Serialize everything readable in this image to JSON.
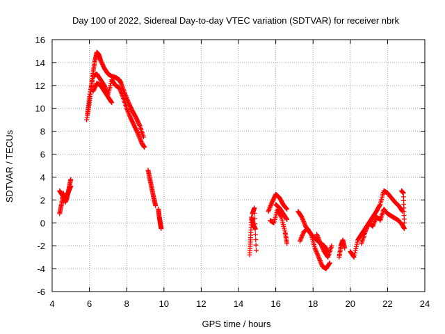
{
  "chart_data": {
    "type": "scatter",
    "title": "Day 100 of 2022, Sidereal Day-to-day VTEC variation (SDTVAR) for receiver nbrk",
    "xlabel": "GPS time / hours",
    "ylabel": "SDTVAR / TECUs",
    "xlim": [
      4,
      24
    ],
    "ylim": [
      -6,
      16
    ],
    "xticks": [
      4,
      6,
      8,
      10,
      12,
      14,
      16,
      18,
      20,
      22,
      24
    ],
    "yticks": [
      -6,
      -4,
      -2,
      0,
      2,
      4,
      6,
      8,
      10,
      12,
      14,
      16
    ],
    "grid": true,
    "marker": "+",
    "marker_color": "#ff0000",
    "series": [
      {
        "name": "SDTVAR",
        "segments": [
          {
            "x": [
              4.4,
              4.5,
              4.6,
              4.7,
              4.8,
              4.9,
              5.0
            ],
            "y": [
              0.8,
              1.6,
              2.6,
              1.8,
              2.2,
              3.0,
              3.8
            ]
          },
          {
            "x": [
              4.4,
              4.55,
              4.7,
              4.85,
              5.0
            ],
            "y": [
              2.8,
              2.4,
              2.0,
              2.6,
              3.2
            ]
          },
          {
            "x": [
              5.85,
              6.0,
              6.1,
              6.2,
              6.3,
              6.4,
              6.5,
              6.6,
              6.8,
              7.0,
              7.2,
              7.4,
              7.5,
              7.6,
              7.7,
              7.9,
              8.1,
              8.3,
              8.5,
              8.7,
              8.9
            ],
            "y": [
              9.0,
              10.5,
              12.0,
              13.2,
              14.2,
              14.9,
              14.7,
              14.2,
              13.5,
              13.0,
              12.8,
              12.7,
              12.6,
              12.5,
              12.2,
              11.3,
              10.5,
              9.8,
              9.2,
              8.5,
              7.5
            ]
          },
          {
            "x": [
              5.9,
              6.0,
              6.2,
              6.4,
              6.6,
              6.8,
              7.0,
              7.2,
              7.4,
              7.6,
              7.8,
              8.0,
              8.2,
              8.4,
              8.6,
              8.8,
              8.95
            ],
            "y": [
              9.5,
              11.0,
              12.8,
              13.0,
              12.5,
              12.0,
              11.2,
              12.5,
              12.0,
              11.8,
              11.0,
              10.0,
              9.2,
              8.5,
              7.8,
              7.0,
              6.6
            ]
          },
          {
            "x": [
              6.2,
              6.4,
              6.6,
              6.8,
              7.0,
              7.2
            ],
            "y": [
              11.5,
              12.2,
              12.0,
              11.5,
              11.0,
              10.5
            ]
          },
          {
            "x": [
              9.15,
              9.25,
              9.35,
              9.45,
              9.55
            ],
            "y": [
              4.6,
              3.8,
              3.0,
              2.2,
              1.5
            ]
          },
          {
            "x": [
              9.7,
              9.75,
              9.8,
              9.85
            ],
            "y": [
              1.2,
              0.5,
              0.0,
              -0.5
            ]
          },
          {
            "x": [
              14.6,
              14.65,
              14.7,
              14.8,
              14.9
            ],
            "y": [
              -2.8,
              -1.3,
              0.5,
              -0.2,
              -0.5
            ]
          },
          {
            "x": [
              14.75,
              14.85,
              14.95
            ],
            "y": [
              0.8,
              1.3,
              -2.4
            ]
          },
          {
            "x": [
              15.6,
              15.8,
              16.0,
              16.2,
              16.4,
              16.6
            ],
            "y": [
              1.0,
              1.8,
              2.5,
              2.2,
              1.6,
              1.2
            ]
          },
          {
            "x": [
              15.7,
              15.9,
              16.1,
              16.3,
              16.5,
              16.6
            ],
            "y": [
              0.2,
              0.0,
              1.2,
              0.5,
              -0.8,
              -1.8
            ]
          },
          {
            "x": [
              16.0,
              16.2,
              16.4,
              16.6
            ],
            "y": [
              1.6,
              1.3,
              0.8,
              0.3
            ]
          },
          {
            "x": [
              17.2,
              17.4,
              17.6,
              17.8,
              18.0,
              18.2,
              18.4,
              18.6,
              18.8
            ],
            "y": [
              1.0,
              0.5,
              -0.3,
              -0.8,
              -1.2,
              -1.5,
              -1.8,
              -2.0,
              -2.5
            ]
          },
          {
            "x": [
              17.3,
              17.5,
              17.7,
              17.9,
              18.1,
              18.3,
              18.5,
              18.7,
              18.9
            ],
            "y": [
              -1.6,
              -0.8,
              -0.5,
              -1.0,
              -2.2,
              -3.0,
              -3.8,
              -4.0,
              -3.5
            ]
          },
          {
            "x": [
              18.2,
              18.4,
              18.6,
              18.8,
              19.0
            ],
            "y": [
              -1.0,
              -1.8,
              -2.5,
              -3.0,
              -2.0
            ]
          },
          {
            "x": [
              19.4,
              19.5,
              19.6,
              19.7
            ],
            "y": [
              -3.0,
              -2.0,
              -1.5,
              -2.2
            ]
          },
          {
            "x": [
              20.0,
              20.2,
              20.4,
              20.6,
              20.8,
              21.0,
              21.2,
              21.4,
              21.6
            ],
            "y": [
              -2.5,
              -3.0,
              -1.5,
              -1.0,
              -0.5,
              0.0,
              -0.3,
              0.5,
              0.3
            ]
          },
          {
            "x": [
              20.6,
              20.8,
              21.0,
              21.2,
              21.4,
              21.6,
              21.8,
              22.0,
              22.2,
              22.4,
              22.6,
              22.8
            ],
            "y": [
              -1.8,
              -0.8,
              0.0,
              0.5,
              1.0,
              1.6,
              2.8,
              2.6,
              2.2,
              1.8,
              1.5,
              1.0
            ]
          },
          {
            "x": [
              21.6,
              21.8,
              22.0,
              22.2,
              22.4,
              22.6,
              22.8,
              22.9
            ],
            "y": [
              0.2,
              1.2,
              0.8,
              0.6,
              0.4,
              0.2,
              -0.2,
              -0.5
            ]
          },
          {
            "x": [
              22.75,
              22.85,
              22.9
            ],
            "y": [
              2.8,
              2.6,
              0.0
            ]
          }
        ]
      }
    ]
  }
}
